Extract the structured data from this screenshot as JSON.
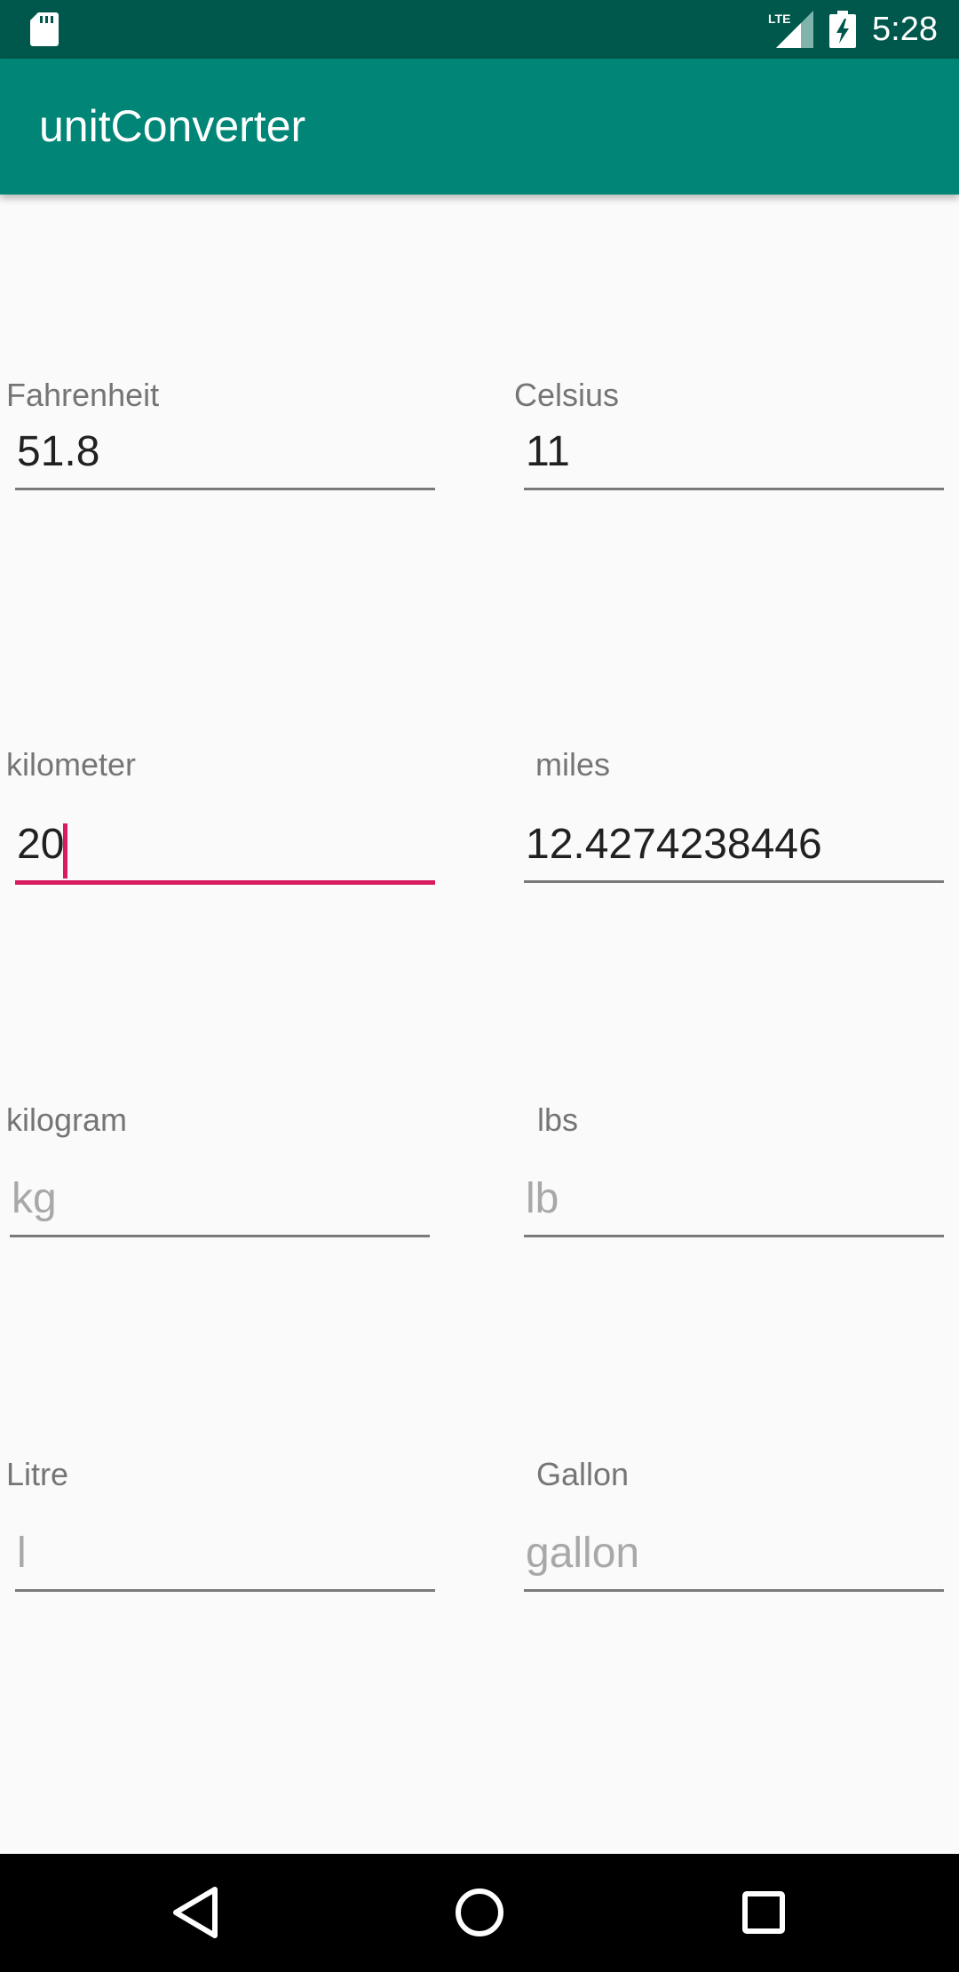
{
  "status_bar": {
    "time": "5:28",
    "network": "LTE",
    "icons": [
      "sd-card-icon",
      "lte-signal-icon",
      "battery-charging-icon"
    ]
  },
  "app_bar": {
    "title": "unitConverter",
    "color": "#008577"
  },
  "fields": [
    {
      "label": "Fahrenheit",
      "value": "51.8",
      "placeholder": ""
    },
    {
      "label": "Celsius",
      "value": "11",
      "placeholder": ""
    },
    {
      "label": "kilometer",
      "value": "20",
      "placeholder": "",
      "focused": true
    },
    {
      "label": "miles",
      "value": "12.4274238446",
      "placeholder": ""
    },
    {
      "label": "kilogram",
      "value": "",
      "placeholder": "kg"
    },
    {
      "label": "lbs",
      "value": "",
      "placeholder": "lb"
    },
    {
      "label": "Litre",
      "value": "",
      "placeholder": "l"
    },
    {
      "label": "Gallon",
      "value": "",
      "placeholder": "gallon"
    }
  ],
  "accent_color": "#d81b60",
  "navigation": {
    "icons": [
      "back-icon",
      "home-icon",
      "recents-icon"
    ]
  }
}
